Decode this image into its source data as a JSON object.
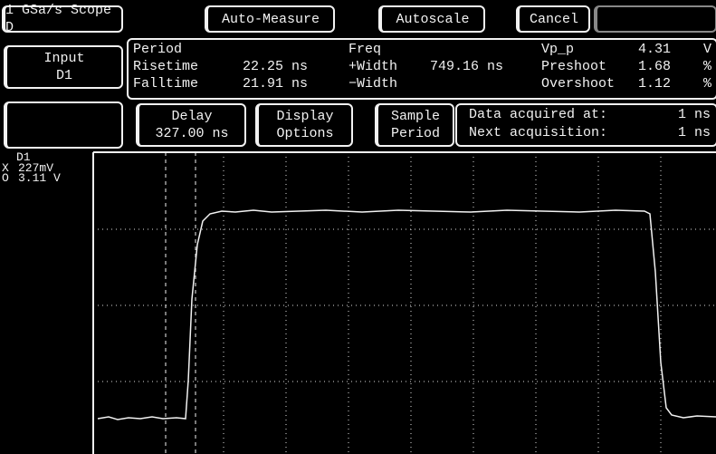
{
  "toolbar": {
    "buttons": [
      "1 GSa/s Scope D",
      "Auto-Measure",
      "Autoscale",
      "Cancel"
    ]
  },
  "input": {
    "label": "Input",
    "channel": "D1"
  },
  "measurements": {
    "col1": [
      {
        "name": "Period",
        "value": ""
      },
      {
        "name": "Risetime",
        "value": "22.25 ns"
      },
      {
        "name": "Falltime",
        "value": "21.91 ns"
      }
    ],
    "col2": [
      {
        "name": "Freq",
        "value": ""
      },
      {
        "name": "+Width",
        "value": "749.16 ns"
      },
      {
        "name": "−Width",
        "value": ""
      }
    ],
    "col3": [
      {
        "name": "Vp_p",
        "value": "4.31",
        "unit": "V"
      },
      {
        "name": "Preshoot",
        "value": "1.68",
        "unit": "%"
      },
      {
        "name": "Overshoot",
        "value": "1.12",
        "unit": "%"
      }
    ]
  },
  "controls": {
    "delay": {
      "label": "Delay",
      "value": "327.00 ns"
    },
    "display": {
      "line1": "Display",
      "line2": "Options"
    },
    "sample": {
      "line1": "Sample",
      "line2": "Period"
    },
    "acquisition": {
      "line1": "Data acquired at:",
      "value1": "1 ns",
      "line2": "Next acquisition:",
      "value2": "1 ns"
    }
  },
  "channel": {
    "name": "D1",
    "x_label": "X",
    "x_value": "227mV",
    "o_label": "O",
    "o_value": "3.11 V"
  }
}
